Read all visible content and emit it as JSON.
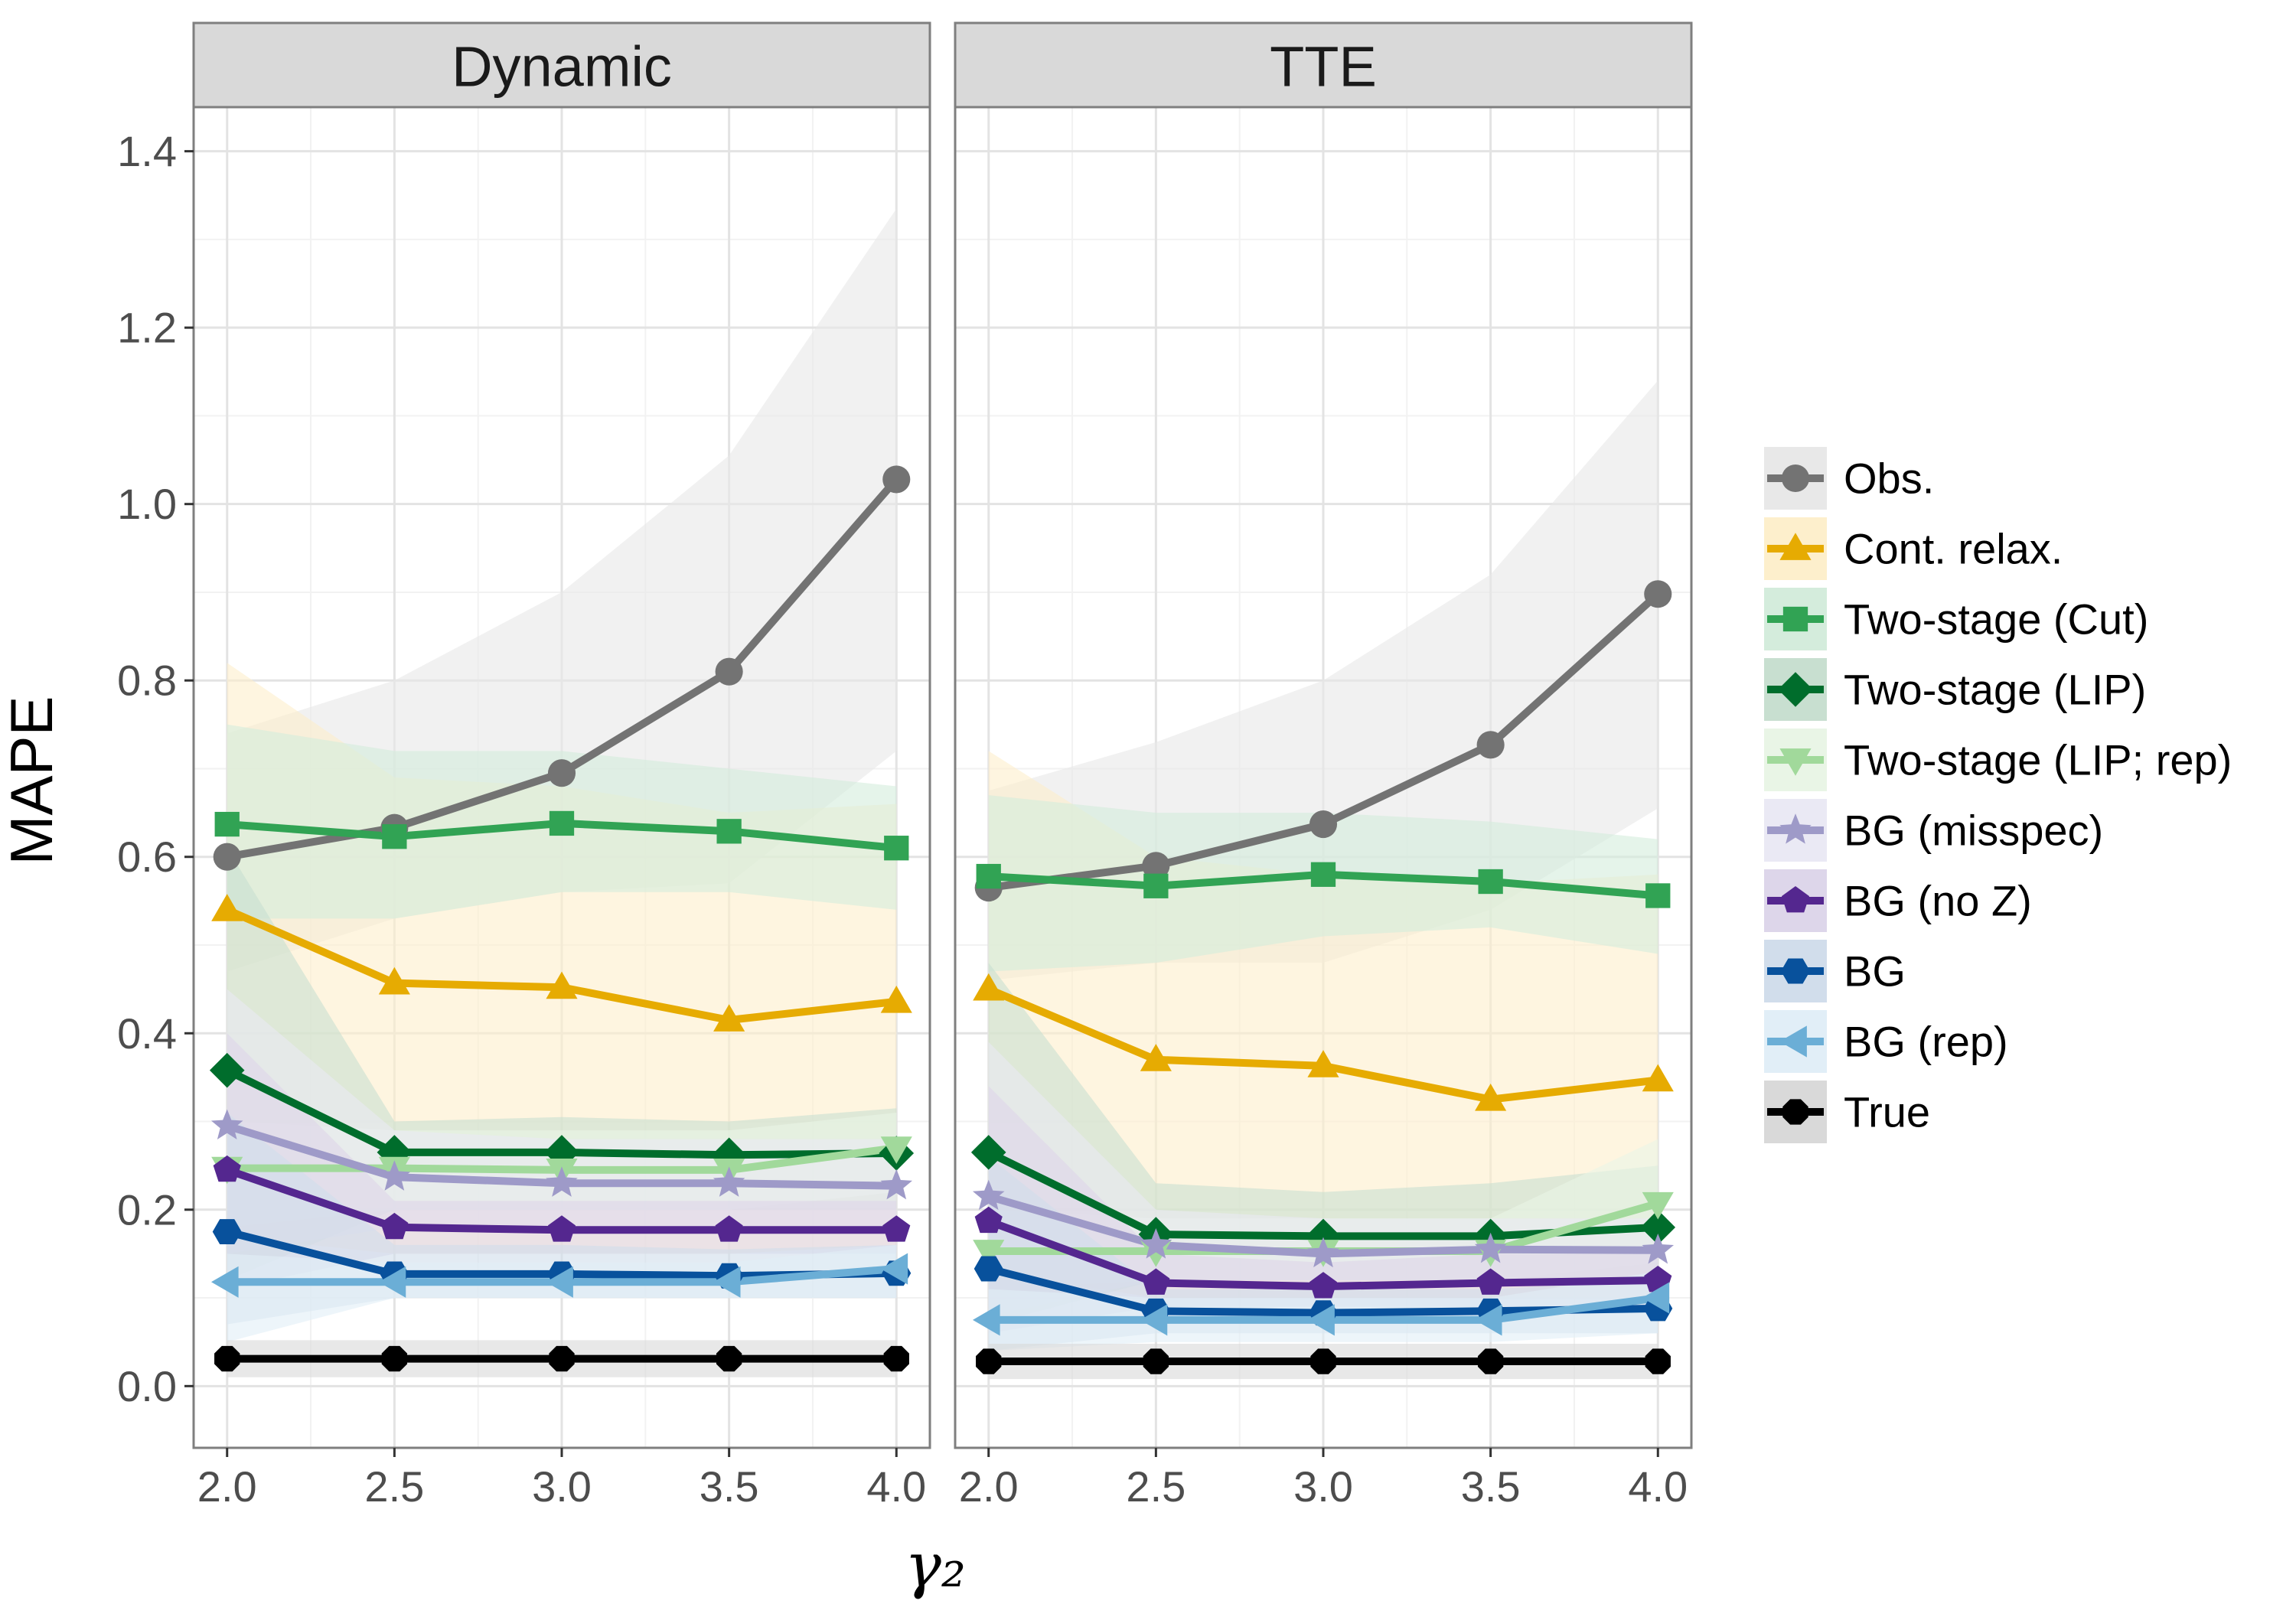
{
  "chart_data": {
    "type": "line",
    "ylabel": "MAPE",
    "xlabel": "γ₂",
    "x": [
      2.0,
      2.5,
      3.0,
      3.5,
      4.0
    ],
    "x_ticks": [
      "2.0",
      "2.5",
      "3.0",
      "3.5",
      "4.0"
    ],
    "ylim": [
      -0.07,
      1.45
    ],
    "y_ticks": [
      "0.0",
      "0.2",
      "0.4",
      "0.6",
      "0.8",
      "1.0",
      "1.2",
      "1.4"
    ],
    "grid": true,
    "legend_position": "right",
    "series_styles": [
      {
        "name": "Obs.",
        "color": "#737373",
        "fill": "#e8e8e8",
        "marker": "circle"
      },
      {
        "name": "Cont. relax.",
        "color": "#e6ab02",
        "fill": "#fdefcc",
        "marker": "triangle-up"
      },
      {
        "name": "Two-stage (Cut)",
        "color": "#31a354",
        "fill": "#d4ecdc",
        "marker": "square"
      },
      {
        "name": "Two-stage (LIP)",
        "color": "#006d2c",
        "fill": "#c8dfd0",
        "marker": "diamond"
      },
      {
        "name": "Two-stage (LIP; rep)",
        "color": "#a1d99b",
        "fill": "#e9f5e6",
        "marker": "triangle-down"
      },
      {
        "name": "BG (misspec)",
        "color": "#9e9ac8",
        "fill": "#eae9f4",
        "marker": "star"
      },
      {
        "name": "BG (no Z)",
        "color": "#54278f",
        "fill": "#ddd6ea",
        "marker": "pentagon"
      },
      {
        "name": "BG",
        "color": "#08519c",
        "fill": "#d1ddeb",
        "marker": "hexagon"
      },
      {
        "name": "BG (rep)",
        "color": "#6baed6",
        "fill": "#e1eef7",
        "marker": "triangle-left"
      },
      {
        "name": "True",
        "color": "#000000",
        "fill": "#d9d9d9",
        "marker": "octagon"
      }
    ],
    "panels": [
      {
        "title": "Dynamic",
        "series": [
          {
            "name": "Obs.",
            "values": [
              0.6,
              0.633,
              0.695,
              0.81,
              1.028
            ],
            "lower": [
              0.47,
              0.53,
              0.56,
              0.57,
              0.72
            ],
            "upper": [
              0.74,
              0.8,
              0.9,
              1.055,
              1.335
            ]
          },
          {
            "name": "Cont. relax.",
            "values": [
              0.54,
              0.457,
              0.452,
              0.415,
              0.436
            ],
            "lower": [
              0.17,
              0.15,
              0.15,
              0.15,
              0.16
            ],
            "upper": [
              0.82,
              0.69,
              0.68,
              0.65,
              0.66
            ]
          },
          {
            "name": "Two-stage (Cut)",
            "values": [
              0.637,
              0.623,
              0.638,
              0.629,
              0.61
            ],
            "lower": [
              0.53,
              0.53,
              0.56,
              0.56,
              0.54
            ],
            "upper": [
              0.75,
              0.72,
              0.72,
              0.7,
              0.68
            ]
          },
          {
            "name": "Two-stage (LIP)",
            "values": [
              0.358,
              0.265,
              0.265,
              0.262,
              0.264
            ],
            "lower": [
              0.12,
              0.2,
              0.2,
              0.2,
              0.2
            ],
            "upper": [
              0.61,
              0.3,
              0.305,
              0.3,
              0.315
            ]
          },
          {
            "name": "Two-stage (LIP; rep)",
            "values": [
              0.247,
              0.247,
              0.245,
              0.245,
              0.27
            ],
            "lower": [
              0.18,
              0.2,
              0.2,
              0.2,
              0.22
            ],
            "upper": [
              0.3,
              0.29,
              0.29,
              0.29,
              0.31
            ]
          },
          {
            "name": "BG (misspec)",
            "values": [
              0.295,
              0.237,
              0.23,
              0.23,
              0.227
            ],
            "lower": [
              0.15,
              0.18,
              0.18,
              0.18,
              0.18
            ],
            "upper": [
              0.45,
              0.29,
              0.28,
              0.28,
              0.28
            ]
          },
          {
            "name": "BG (no Z)",
            "values": [
              0.245,
              0.18,
              0.177,
              0.177,
              0.177
            ],
            "lower": [
              0.11,
              0.15,
              0.15,
              0.15,
              0.15
            ],
            "upper": [
              0.4,
              0.21,
              0.21,
              0.21,
              0.21
            ]
          },
          {
            "name": "BG",
            "values": [
              0.175,
              0.127,
              0.127,
              0.125,
              0.128
            ],
            "lower": [
              0.07,
              0.1,
              0.1,
              0.1,
              0.1
            ],
            "upper": [
              0.31,
              0.16,
              0.16,
              0.155,
              0.16
            ]
          },
          {
            "name": "BG (rep)",
            "values": [
              0.118,
              0.118,
              0.118,
              0.118,
              0.133
            ],
            "lower": [
              0.05,
              0.1,
              0.1,
              0.1,
              0.1
            ],
            "upper": [
              0.15,
              0.14,
              0.14,
              0.14,
              0.16
            ]
          },
          {
            "name": "True",
            "values": [
              0.031,
              0.031,
              0.031,
              0.031,
              0.031
            ],
            "lower": [
              0.01,
              0.01,
              0.01,
              0.01,
              0.01
            ],
            "upper": [
              0.052,
              0.052,
              0.052,
              0.052,
              0.052
            ]
          }
        ]
      },
      {
        "title": "TTE",
        "series": [
          {
            "name": "Obs.",
            "values": [
              0.565,
              0.59,
              0.637,
              0.727,
              0.898
            ],
            "lower": [
              0.46,
              0.48,
              0.48,
              0.54,
              0.655
            ],
            "upper": [
              0.675,
              0.73,
              0.8,
              0.92,
              1.14
            ]
          },
          {
            "name": "Cont. relax.",
            "values": [
              0.45,
              0.37,
              0.363,
              0.325,
              0.347
            ],
            "lower": [
              0.13,
              0.1,
              0.1,
              0.1,
              0.1
            ],
            "upper": [
              0.72,
              0.6,
              0.58,
              0.57,
              0.58
            ]
          },
          {
            "name": "Two-stage (Cut)",
            "values": [
              0.578,
              0.567,
              0.58,
              0.572,
              0.556
            ],
            "lower": [
              0.47,
              0.48,
              0.51,
              0.52,
              0.49
            ],
            "upper": [
              0.67,
              0.65,
              0.65,
              0.64,
              0.62
            ]
          },
          {
            "name": "Two-stage (LIP)",
            "values": [
              0.265,
              0.172,
              0.17,
              0.17,
              0.18
            ],
            "lower": [
              0.07,
              0.12,
              0.12,
              0.12,
              0.12
            ],
            "upper": [
              0.48,
              0.23,
              0.22,
              0.23,
              0.25
            ]
          },
          {
            "name": "Two-stage (LIP; rep)",
            "values": [
              0.153,
              0.153,
              0.153,
              0.153,
              0.207
            ],
            "lower": [
              0.11,
              0.12,
              0.12,
              0.12,
              0.14
            ],
            "upper": [
              0.2,
              0.19,
              0.19,
              0.19,
              0.28
            ]
          },
          {
            "name": "BG (misspec)",
            "values": [
              0.215,
              0.16,
              0.15,
              0.155,
              0.154
            ],
            "lower": [
              0.08,
              0.12,
              0.12,
              0.12,
              0.12
            ],
            "upper": [
              0.39,
              0.2,
              0.19,
              0.19,
              0.19
            ]
          },
          {
            "name": "BG (no Z)",
            "values": [
              0.187,
              0.117,
              0.113,
              0.117,
              0.12
            ],
            "lower": [
              0.06,
              0.09,
              0.09,
              0.09,
              0.09
            ],
            "upper": [
              0.34,
              0.15,
              0.14,
              0.15,
              0.15
            ]
          },
          {
            "name": "BG",
            "values": [
              0.133,
              0.085,
              0.083,
              0.085,
              0.088
            ],
            "lower": [
              0.04,
              0.06,
              0.06,
              0.06,
              0.06
            ],
            "upper": [
              0.26,
              0.11,
              0.11,
              0.11,
              0.12
            ]
          },
          {
            "name": "BG (rep)",
            "values": [
              0.075,
              0.075,
              0.075,
              0.075,
              0.1
            ],
            "lower": [
              0.04,
              0.05,
              0.05,
              0.05,
              0.06
            ],
            "upper": [
              0.11,
              0.1,
              0.1,
              0.1,
              0.13
            ]
          },
          {
            "name": "True",
            "values": [
              0.028,
              0.028,
              0.028,
              0.028,
              0.028
            ],
            "lower": [
              0.008,
              0.008,
              0.008,
              0.008,
              0.008
            ],
            "upper": [
              0.048,
              0.048,
              0.048,
              0.048,
              0.048
            ]
          }
        ]
      }
    ]
  }
}
